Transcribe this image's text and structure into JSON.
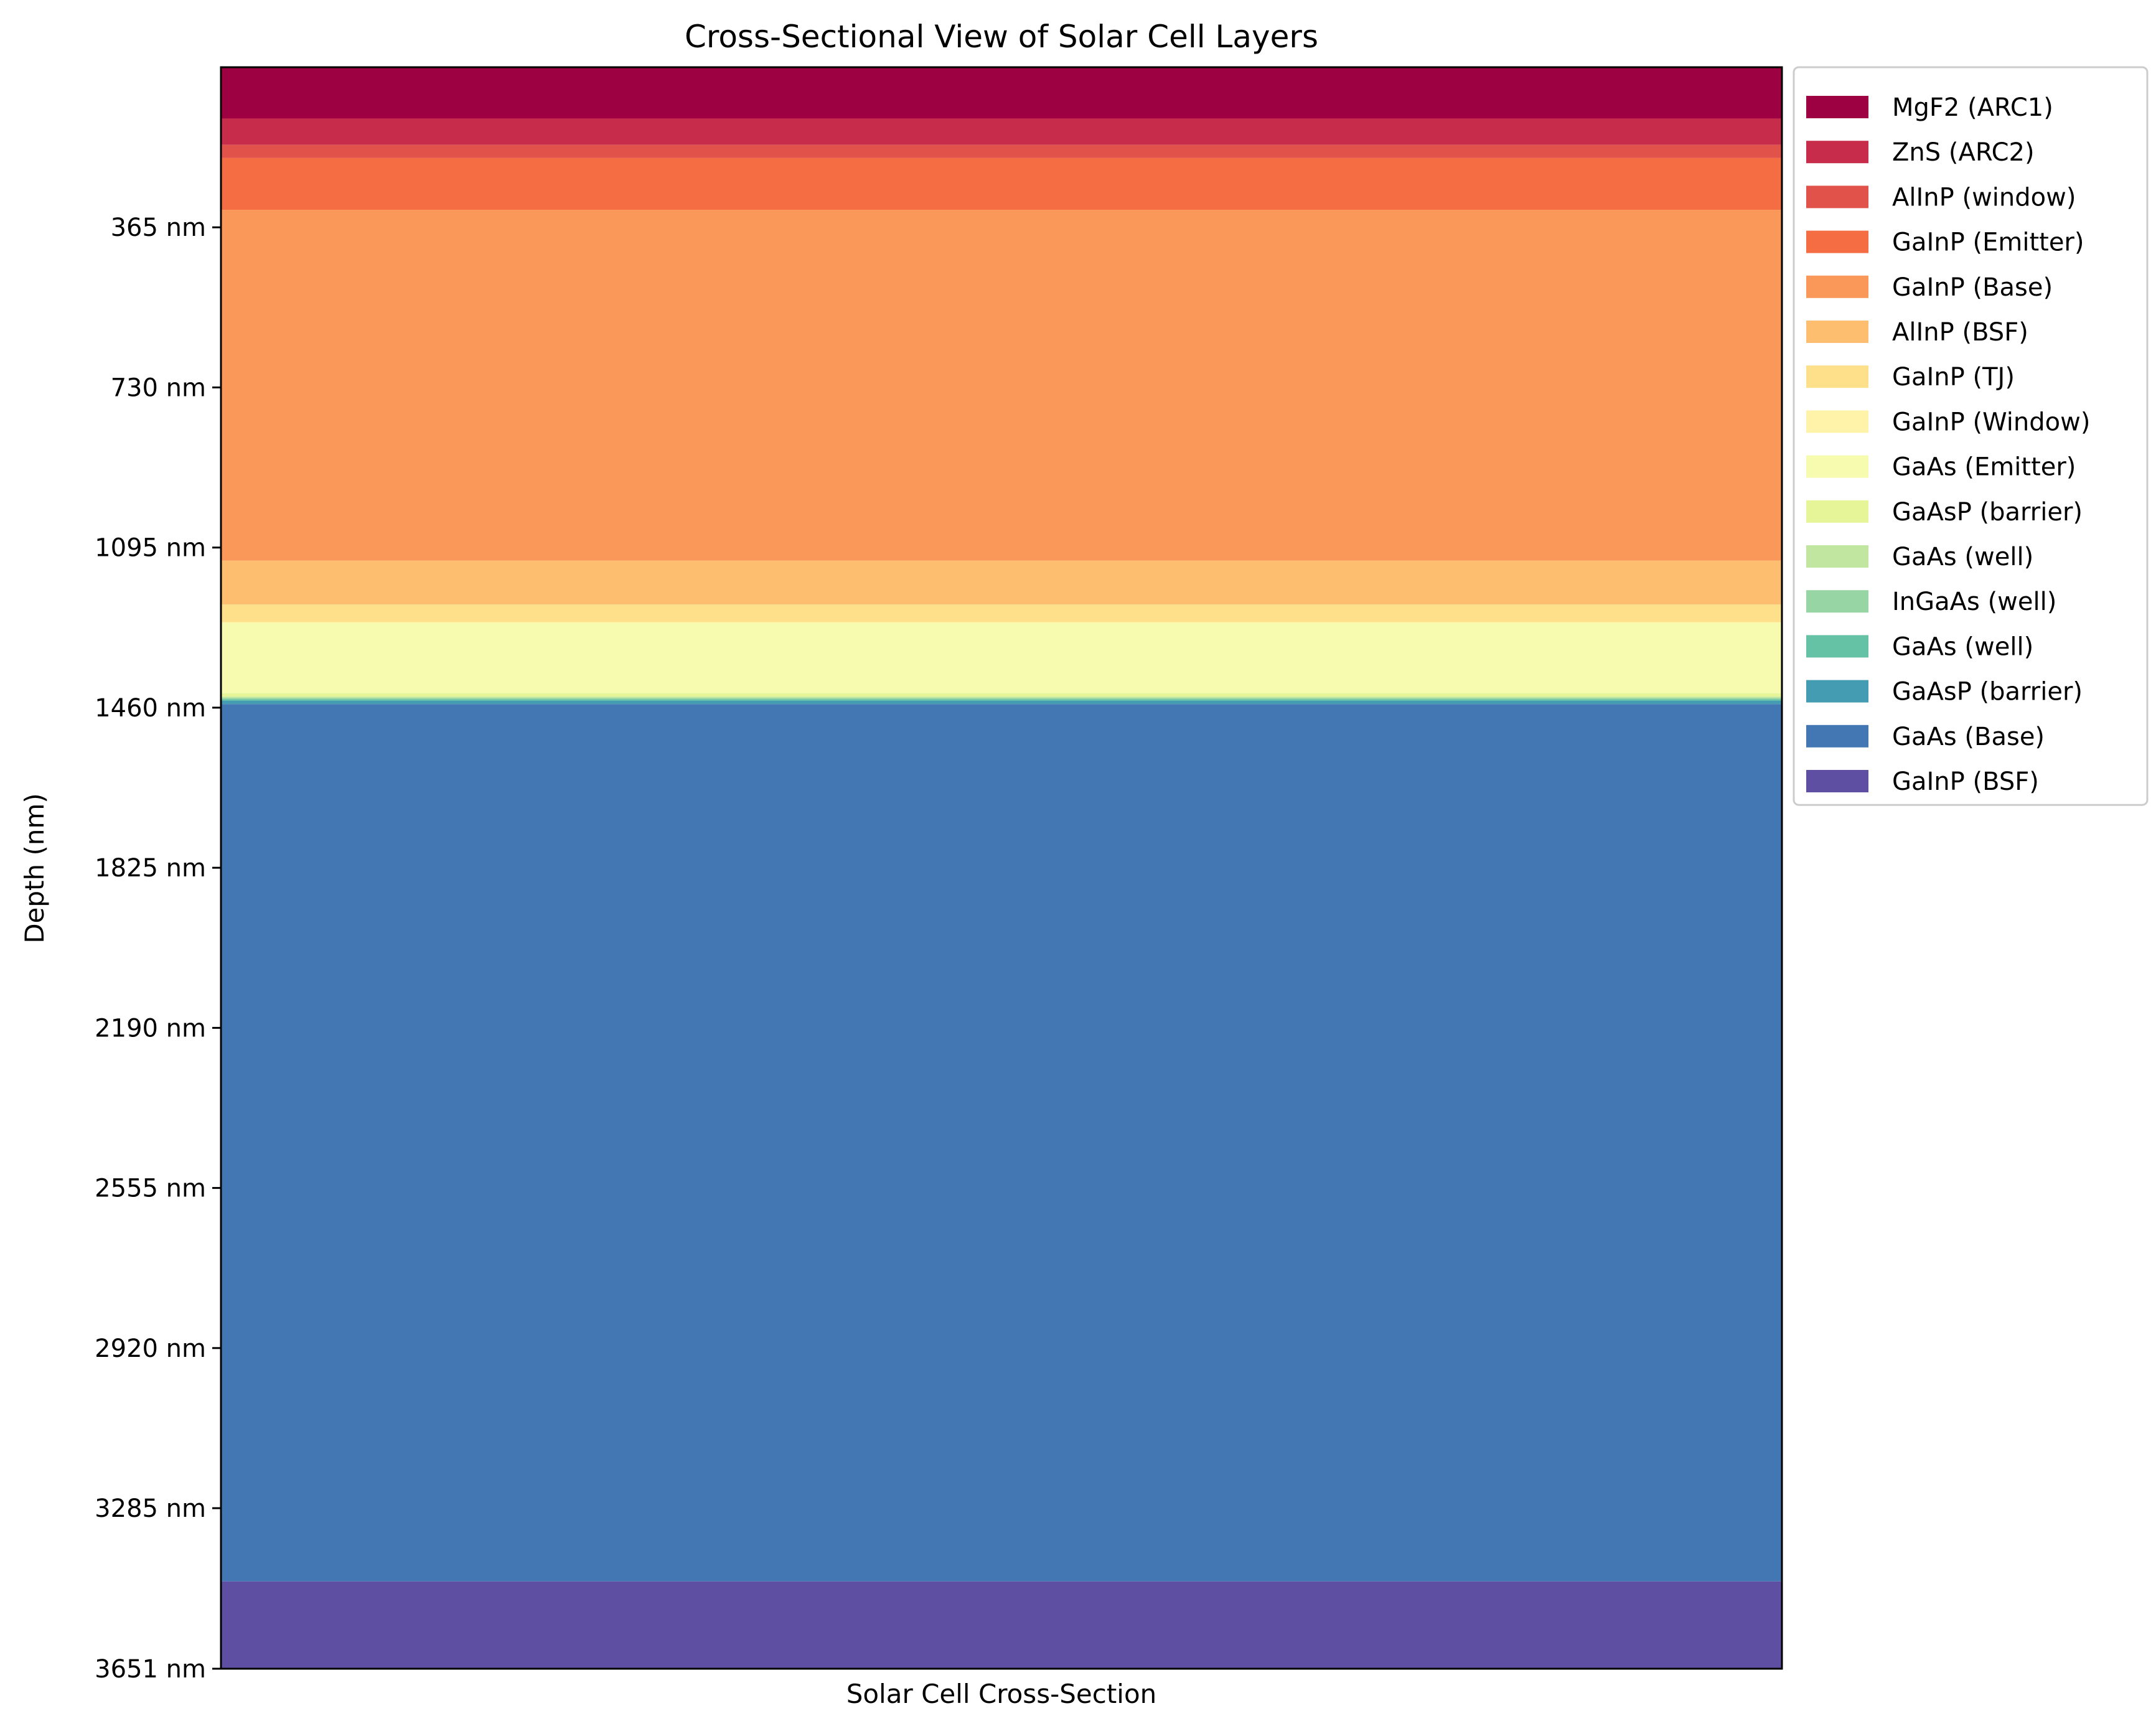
{
  "chart_data": {
    "type": "bar",
    "orientation": "stacked-vertical",
    "title": "Cross-Sectional View of Solar Cell Layers",
    "xlabel": "Solar Cell Cross-Section",
    "ylabel": "Depth (nm)",
    "y_inverted": true,
    "ylim": [
      0,
      3651
    ],
    "y_ticks": [
      365,
      730,
      1095,
      1460,
      1825,
      2190,
      2555,
      2920,
      3285,
      3651
    ],
    "y_tick_labels": [
      "365 nm",
      "730 nm",
      "1095 nm",
      "1460 nm",
      "1825 nm",
      "2190 nm",
      "2555 nm",
      "2920 nm",
      "3285 nm",
      "3651 nm"
    ],
    "legend_position": "outside-right",
    "layers": [
      {
        "name": "MgF2 (ARC1)",
        "thickness": 117,
        "color": "#9e0142"
      },
      {
        "name": "ZnS (ARC2)",
        "thickness": 60,
        "color": "#c72c4a"
      },
      {
        "name": "AlInP (window)",
        "thickness": 30,
        "color": "#e1524a"
      },
      {
        "name": "GaInP (Emitter)",
        "thickness": 118,
        "color": "#f46d43"
      },
      {
        "name": "GaInP (Base)",
        "thickness": 800,
        "color": "#f99858"
      },
      {
        "name": "AlInP (BSF)",
        "thickness": 100,
        "color": "#fdbf6f"
      },
      {
        "name": "GaInP (TJ)",
        "thickness": 40,
        "color": "#fee08b"
      },
      {
        "name": "GaInP (Window)",
        "thickness": 2,
        "color": "#fff3aa"
      },
      {
        "name": "GaAs (Emitter)",
        "thickness": 160,
        "color": "#f7fbaf"
      },
      {
        "name": "GaAsP (barrier)",
        "thickness": 8,
        "color": "#e6f598"
      },
      {
        "name": "GaAs (well)",
        "thickness": 3,
        "color": "#c1e6a0"
      },
      {
        "name": "InGaAs (well)",
        "thickness": 3,
        "color": "#98d5a4"
      },
      {
        "name": "GaAs (well)",
        "thickness": 3,
        "color": "#66c2a5"
      },
      {
        "name": "GaAsP (barrier)",
        "thickness": 8,
        "color": "#439cb1"
      },
      {
        "name": "GaAs (Base)",
        "thickness": 2000,
        "color": "#4377b4"
      },
      {
        "name": "GaInP (BSF)",
        "thickness": 199,
        "color": "#5e4fa2"
      }
    ]
  }
}
